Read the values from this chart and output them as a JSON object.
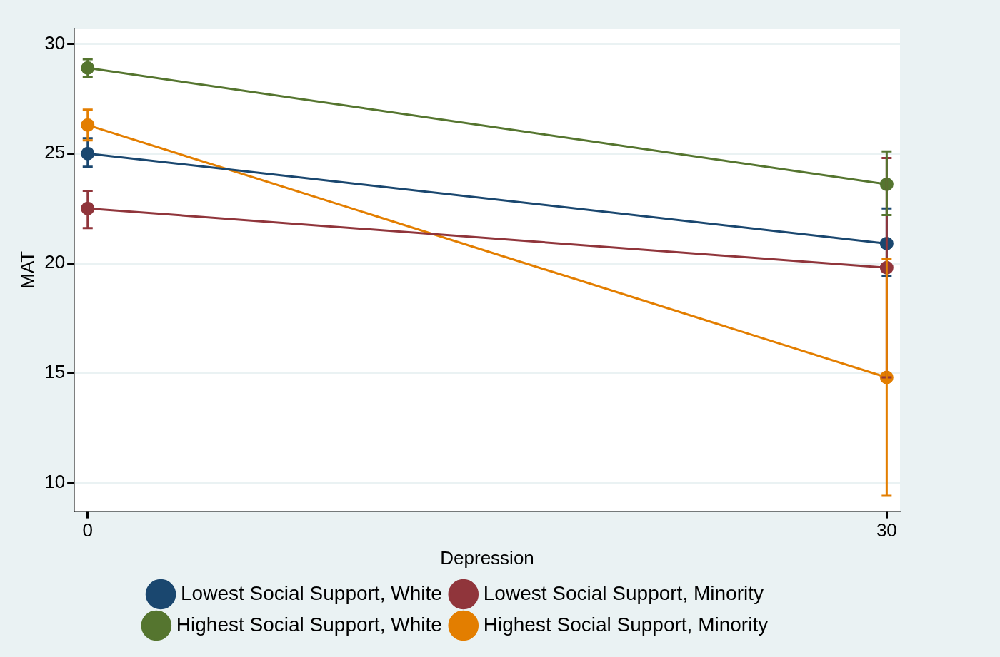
{
  "chart_data": {
    "type": "line",
    "xlabel": "Depression",
    "ylabel": "MAT",
    "x": [
      0,
      30
    ],
    "xlim": [
      -0.5,
      30.5
    ],
    "xticks": [
      0,
      30
    ],
    "ylim": [
      8.7,
      30.7
    ],
    "yticks": [
      10,
      15,
      20,
      25,
      30
    ],
    "grid": "y",
    "legend": "bottom",
    "marker": "circle",
    "series": [
      {
        "name": "Lowest Social Support, White",
        "color": "#1a476f",
        "values": [
          25.0,
          20.9
        ],
        "errors": [
          [
            24.4,
            25.7
          ],
          [
            19.4,
            22.5
          ]
        ]
      },
      {
        "name": "Lowest Social Support, Minority",
        "color": "#90353b",
        "values": [
          22.5,
          19.8
        ],
        "errors": [
          [
            21.6,
            23.3
          ],
          [
            14.8,
            24.8
          ]
        ]
      },
      {
        "name": "Highest Social Support, White",
        "color": "#55752f",
        "values": [
          28.9,
          23.6
        ],
        "errors": [
          [
            28.5,
            29.3
          ],
          [
            22.2,
            25.1
          ]
        ]
      },
      {
        "name": "Highest Social Support, Minority",
        "color": "#e37e00",
        "values": [
          26.3,
          14.8
        ],
        "errors": [
          [
            25.6,
            27.0
          ],
          [
            9.4,
            20.2
          ]
        ]
      }
    ]
  }
}
